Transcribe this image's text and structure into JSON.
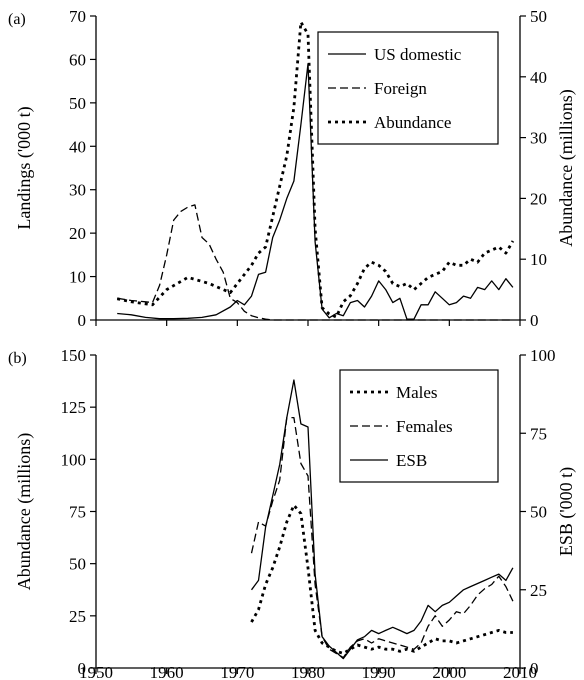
{
  "chart_data": [
    {
      "type": "line",
      "panel_label": "(a)",
      "x_range": [
        1950,
        2010
      ],
      "x_ticks": [],
      "y_left": {
        "label": "Landings ('000 t)",
        "range": [
          0,
          70
        ],
        "ticks": [
          0,
          10,
          20,
          30,
          40,
          50,
          60,
          70
        ]
      },
      "y_right": {
        "label": "Abundance (millions)",
        "range": [
          0,
          50
        ],
        "ticks": [
          0,
          10,
          20,
          30,
          40,
          50
        ]
      },
      "legend": {
        "position": "top-right",
        "entries": [
          "US domestic",
          "Foreign",
          "Abundance"
        ]
      },
      "series": [
        {
          "name": "US domestic",
          "axis": "left",
          "style": "solid",
          "x": [
            1953,
            1955,
            1957,
            1959,
            1961,
            1963,
            1965,
            1967,
            1969,
            1970,
            1971,
            1972,
            1973,
            1974,
            1975,
            1976,
            1977,
            1978,
            1979,
            1980,
            1981,
            1982,
            1983,
            1984,
            1985,
            1986,
            1987,
            1988,
            1989,
            1990,
            1991,
            1992,
            1993,
            1994,
            1995,
            1996,
            1997,
            1998,
            1999,
            2000,
            2001,
            2002,
            2003,
            2004,
            2005,
            2006,
            2007,
            2008,
            2009
          ],
          "y": [
            1.5,
            1.2,
            0.6,
            0.3,
            0.3,
            0.4,
            0.6,
            1.2,
            3.0,
            4.5,
            3.5,
            5.5,
            10.5,
            11.0,
            19.0,
            23.0,
            28.0,
            32.0,
            45.0,
            59.0,
            18.0,
            2.5,
            0.5,
            1.5,
            1.0,
            4.0,
            4.5,
            3.0,
            5.5,
            9.0,
            7.0,
            4.0,
            5.0,
            0.2,
            0.2,
            3.5,
            3.5,
            6.5,
            5.0,
            3.5,
            4.0,
            5.5,
            5.0,
            7.5,
            7.0,
            9.0,
            7.0,
            9.5,
            7.5
          ]
        },
        {
          "name": "Foreign",
          "axis": "left",
          "style": "dashed",
          "x": [
            1953,
            1955,
            1957,
            1958,
            1959,
            1960,
            1961,
            1962,
            1963,
            1964,
            1965,
            1966,
            1967,
            1968,
            1969,
            1970,
            1971,
            1972,
            1973,
            1974,
            1975,
            1980,
            1990,
            2000,
            2009
          ],
          "y": [
            5.0,
            4.5,
            4.2,
            4.0,
            8.0,
            15.0,
            23.0,
            25.0,
            26.0,
            26.5,
            19.0,
            17.5,
            14.0,
            11.0,
            5.0,
            4.0,
            2.0,
            1.0,
            0.5,
            0.2,
            0,
            0,
            0,
            0,
            0
          ]
        },
        {
          "name": "Abundance",
          "axis": "right",
          "style": "dotted",
          "x": [
            1953,
            1955,
            1958,
            1960,
            1963,
            1966,
            1969,
            1972,
            1973,
            1974,
            1975,
            1976,
            1977,
            1978,
            1979,
            1980,
            1981,
            1982,
            1983,
            1984,
            1985,
            1986,
            1987,
            1988,
            1989,
            1990,
            1991,
            1992,
            1993,
            1994,
            1995,
            1996,
            1997,
            1998,
            1999,
            2000,
            2001,
            2002,
            2003,
            2004,
            2005,
            2006,
            2007,
            2008,
            2009
          ],
          "y": [
            3.5,
            3.0,
            2.5,
            5.0,
            7.0,
            6.0,
            4.5,
            9.0,
            11.0,
            12.0,
            17.0,
            22.0,
            27.0,
            35.0,
            49.0,
            47.0,
            15.0,
            2.0,
            1.0,
            0.5,
            3.0,
            4.0,
            6.0,
            8.5,
            9.5,
            9.0,
            8.0,
            6.0,
            5.5,
            6.0,
            5.0,
            6.0,
            7.0,
            7.5,
            8.0,
            9.5,
            9.0,
            9.0,
            10.0,
            9.5,
            11.0,
            11.5,
            12.0,
            11.0,
            13.0
          ]
        }
      ]
    },
    {
      "type": "line",
      "panel_label": "(b)",
      "x_range": [
        1950,
        2010
      ],
      "x_ticks": [
        1950,
        1960,
        1970,
        1980,
        1990,
        2000,
        2010
      ],
      "y_left": {
        "label": "Abundance (millions)",
        "range": [
          0,
          150
        ],
        "ticks": [
          0,
          25,
          50,
          75,
          100,
          125,
          150
        ]
      },
      "y_right": {
        "label": "ESB ('000 t)",
        "range": [
          0,
          100
        ],
        "ticks": [
          0,
          25,
          50,
          75,
          100
        ]
      },
      "legend": {
        "position": "top-right",
        "entries": [
          "Males",
          "Females",
          "ESB"
        ]
      },
      "series": [
        {
          "name": "Males",
          "axis": "left",
          "style": "dotted",
          "x": [
            1972,
            1973,
            1974,
            1975,
            1976,
            1977,
            1978,
            1979,
            1980,
            1981,
            1982,
            1983,
            1984,
            1985,
            1986,
            1987,
            1988,
            1989,
            1990,
            1991,
            1992,
            1993,
            1994,
            1995,
            1996,
            1997,
            1998,
            1999,
            2000,
            2001,
            2002,
            2003,
            2004,
            2005,
            2006,
            2007,
            2008,
            2009
          ],
          "y": [
            22,
            28,
            40,
            48,
            58,
            70,
            78,
            74,
            48,
            18,
            12,
            10,
            8,
            7,
            9,
            11,
            10,
            9,
            10,
            9,
            9,
            8,
            9,
            8,
            10,
            12,
            14,
            13,
            13,
            12,
            13,
            14,
            15,
            16,
            17,
            18,
            17,
            17
          ]
        },
        {
          "name": "Females",
          "axis": "left",
          "style": "dashed",
          "x": [
            1972,
            1973,
            1974,
            1975,
            1976,
            1977,
            1978,
            1979,
            1980,
            1981,
            1982,
            1983,
            1984,
            1985,
            1986,
            1987,
            1988,
            1989,
            1990,
            1991,
            1992,
            1993,
            1994,
            1995,
            1996,
            1997,
            1998,
            1999,
            2000,
            2001,
            2002,
            2003,
            2004,
            2005,
            2006,
            2007,
            2008,
            2009
          ],
          "y": [
            55,
            70,
            68,
            80,
            90,
            120,
            120,
            98,
            92,
            40,
            15,
            9,
            7,
            5,
            10,
            13,
            14,
            12,
            14,
            13,
            12,
            11,
            10,
            9,
            12,
            20,
            25,
            20,
            23,
            27,
            26,
            30,
            35,
            38,
            40,
            44,
            39,
            32
          ]
        },
        {
          "name": "ESB",
          "axis": "right",
          "style": "solid",
          "x": [
            1972,
            1973,
            1974,
            1975,
            1976,
            1977,
            1978,
            1979,
            1980,
            1981,
            1982,
            1983,
            1984,
            1985,
            1986,
            1987,
            1988,
            1989,
            1990,
            1991,
            1992,
            1993,
            1994,
            1995,
            1996,
            1997,
            1998,
            1999,
            2000,
            2001,
            2002,
            2003,
            2004,
            2005,
            2006,
            2007,
            2008,
            2009
          ],
          "y": [
            25,
            28,
            45,
            55,
            65,
            80,
            92,
            78,
            77,
            30,
            10,
            7,
            5,
            3,
            6,
            9,
            10,
            12,
            11,
            12,
            13,
            12,
            11,
            12,
            15,
            20,
            18,
            20,
            21,
            23,
            25,
            26,
            27,
            28,
            29,
            30,
            28,
            32
          ]
        }
      ]
    }
  ]
}
